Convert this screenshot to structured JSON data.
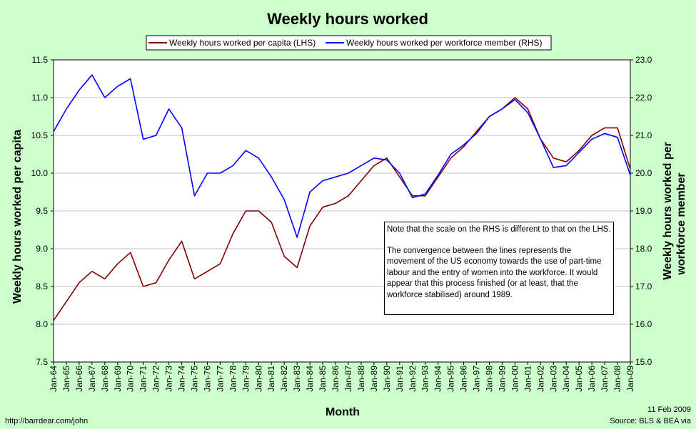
{
  "chart_data": {
    "type": "line",
    "title": "Weekly hours worked",
    "xlabel": "Month",
    "ylabel_left": "Weekly hours worked per capita",
    "ylabel_right": "Weekly hours worked per workforce member",
    "ylim_left": [
      7.5,
      11.5
    ],
    "ylim_right": [
      15.0,
      23.0
    ],
    "yticks_left": [
      "7.5",
      "8.0",
      "8.5",
      "9.0",
      "9.5",
      "10.0",
      "10.5",
      "11.0",
      "11.5"
    ],
    "yticks_right": [
      "15.0",
      "16.0",
      "17.0",
      "18.0",
      "19.0",
      "20.0",
      "21.0",
      "22.0",
      "23.0"
    ],
    "x_tick_labels": [
      "Jan-64",
      "Jan-65",
      "Jan-66",
      "Jan-67",
      "Jan-68",
      "Jan-69",
      "Jan-70",
      "Jan-71",
      "Jan-72",
      "Jan-73",
      "Jan-74",
      "Jan-75",
      "Jan-76",
      "Jan-77",
      "Jan-78",
      "Jan-79",
      "Jan-80",
      "Jan-81",
      "Jan-82",
      "Jan-83",
      "Jan-84",
      "Jan-85",
      "Jan-86",
      "Jan-87",
      "Jan-88",
      "Jan-89",
      "Jan-90",
      "Jan-91",
      "Jan-92",
      "Jan-93",
      "Jan-94",
      "Jan-95",
      "Jan-96",
      "Jan-97",
      "Jan-98",
      "Jan-99",
      "Jan-00",
      "Jan-01",
      "Jan-02",
      "Jan-03",
      "Jan-04",
      "Jan-05",
      "Jan-06",
      "Jan-07",
      "Jan-08",
      "Jan-09"
    ],
    "grid": true,
    "legend_placement": "top-center",
    "series": [
      {
        "name": "Weekly hours worked per capita (LHS)",
        "axis": "left",
        "color": "#800000",
        "x": [
          "Jan-64",
          "Jan-65",
          "Jan-66",
          "Jan-67",
          "Jan-68",
          "Jan-69",
          "Jan-70",
          "Jan-71",
          "Jan-72",
          "Jan-73",
          "Jan-74",
          "Jan-75",
          "Jan-76",
          "Jan-77",
          "Jan-78",
          "Jan-79",
          "Jan-80",
          "Jan-81",
          "Jan-82",
          "Jan-83",
          "Jan-84",
          "Jan-85",
          "Jan-86",
          "Jan-87",
          "Jan-88",
          "Jan-89",
          "Jan-90",
          "Jan-91",
          "Jan-92",
          "Jan-93",
          "Jan-94",
          "Jan-95",
          "Jan-96",
          "Jan-97",
          "Jan-98",
          "Jan-99",
          "Jan-00",
          "Jan-01",
          "Jan-02",
          "Jan-03",
          "Jan-04",
          "Jan-05",
          "Jan-06",
          "Jan-07",
          "Jan-08",
          "Jan-09"
        ],
        "values": [
          8.05,
          8.3,
          8.55,
          8.7,
          8.6,
          8.8,
          8.95,
          8.5,
          8.55,
          8.85,
          9.1,
          8.6,
          8.7,
          8.8,
          9.2,
          9.5,
          9.5,
          9.35,
          8.9,
          8.75,
          9.3,
          9.55,
          9.6,
          9.7,
          9.9,
          10.1,
          10.2,
          9.95,
          9.7,
          9.7,
          9.95,
          10.2,
          10.35,
          10.55,
          10.75,
          10.85,
          11.0,
          10.85,
          10.45,
          10.2,
          10.15,
          10.3,
          10.5,
          10.6,
          10.6,
          10.05
        ]
      },
      {
        "name": "Weekly hours worked per workforce member (RHS)",
        "axis": "right",
        "color": "#0000ff",
        "x": [
          "Jan-64",
          "Jan-65",
          "Jan-66",
          "Jan-67",
          "Jan-68",
          "Jan-69",
          "Jan-70",
          "Jan-71",
          "Jan-72",
          "Jan-73",
          "Jan-74",
          "Jan-75",
          "Jan-76",
          "Jan-77",
          "Jan-78",
          "Jan-79",
          "Jan-80",
          "Jan-81",
          "Jan-82",
          "Jan-83",
          "Jan-84",
          "Jan-85",
          "Jan-86",
          "Jan-87",
          "Jan-88",
          "Jan-89",
          "Jan-90",
          "Jan-91",
          "Jan-92",
          "Jan-93",
          "Jan-94",
          "Jan-95",
          "Jan-96",
          "Jan-97",
          "Jan-98",
          "Jan-99",
          "Jan-00",
          "Jan-01",
          "Jan-02",
          "Jan-03",
          "Jan-04",
          "Jan-05",
          "Jan-06",
          "Jan-07",
          "Jan-08",
          "Jan-09"
        ],
        "values": [
          21.1,
          21.7,
          22.2,
          22.6,
          22.0,
          22.3,
          22.5,
          20.9,
          21.0,
          21.7,
          21.2,
          19.4,
          20.0,
          20.0,
          20.2,
          20.6,
          20.4,
          19.9,
          19.3,
          18.3,
          19.5,
          19.8,
          19.9,
          20.0,
          20.2,
          20.4,
          20.35,
          20.0,
          19.35,
          19.45,
          19.95,
          20.5,
          20.75,
          21.05,
          21.5,
          21.7,
          21.95,
          21.6,
          20.9,
          20.15,
          20.2,
          20.55,
          20.9,
          21.05,
          20.95,
          19.95
        ]
      }
    ]
  },
  "note_paragraphs": [
    "Note that the scale on the RHS is different to that on the LHS.",
    "The convergence between the lines represents the movement of the US economy towards the use of part-time labour and the entry of women into the workforce.  It would appear that this process finished (or at least, that the workforce stabilised) around 1989."
  ],
  "footer": {
    "url": "http://barrdear.com/john",
    "date": "11 Feb 2009",
    "source": "Source:  BLS & BEA via"
  }
}
